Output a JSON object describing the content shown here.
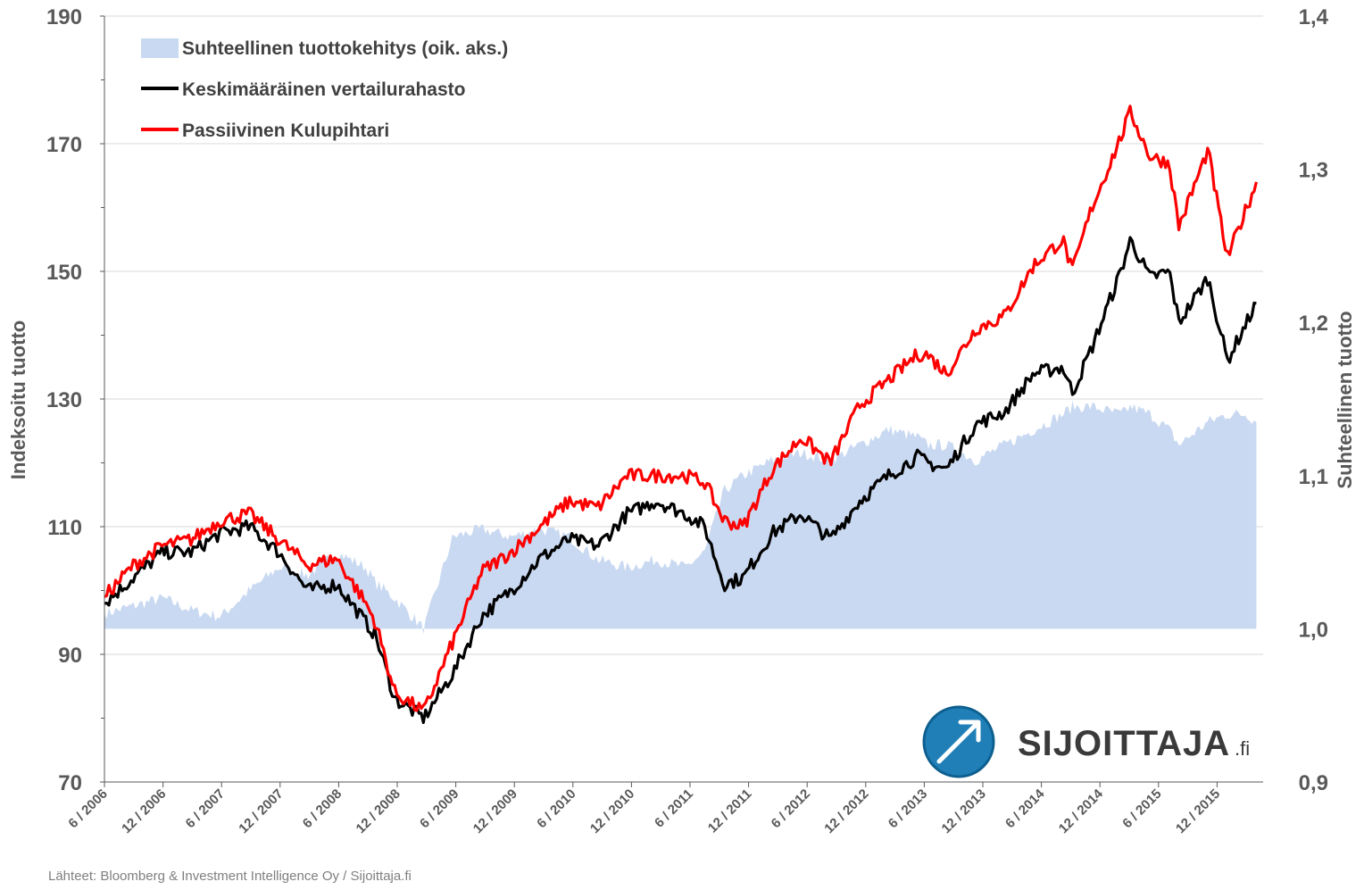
{
  "chart_data": {
    "type": "line",
    "title": "",
    "ylabel": "Indeksoitu tuotto",
    "y2label": "Suhteellinen tuotto",
    "ylim": [
      70,
      190
    ],
    "yticks": [
      "70",
      "90",
      "110",
      "130",
      "150",
      "170",
      "190"
    ],
    "y2lim": [
      0.9,
      1.4
    ],
    "y2ticks": [
      "0,9",
      "1,0",
      "1,1",
      "1,2",
      "1,3",
      "1,4"
    ],
    "x_tick_labels": [
      "6 / 2006",
      "12 / 2006",
      "6 / 2007",
      "12 / 2007",
      "6 / 2008",
      "12 / 2008",
      "6 / 2009",
      "12 / 2009",
      "6 / 2010",
      "12 / 2010",
      "6 / 2011",
      "12 / 2011",
      "6 / 2012",
      "12 / 2012",
      "6 / 2013",
      "12 / 2013",
      "6 / 2014",
      "12 / 2014",
      "6 / 2015",
      "12 / 2015"
    ],
    "x": [
      "2006-06",
      "2006-09",
      "2006-12",
      "2007-03",
      "2007-06",
      "2007-09",
      "2007-12",
      "2008-03",
      "2008-06",
      "2008-09",
      "2008-10",
      "2008-12",
      "2009-03",
      "2009-06",
      "2009-09",
      "2009-12",
      "2010-03",
      "2010-06",
      "2010-09",
      "2010-12",
      "2011-03",
      "2011-06",
      "2011-08",
      "2011-10",
      "2011-12",
      "2012-03",
      "2012-06",
      "2012-09",
      "2012-12",
      "2013-03",
      "2013-06",
      "2013-07",
      "2013-09",
      "2013-12",
      "2014-03",
      "2014-06",
      "2014-09",
      "2014-10",
      "2014-12",
      "2015-03",
      "2015-04",
      "2015-06",
      "2015-08",
      "2015-09",
      "2015-12",
      "2016-02",
      "2016-04",
      "2016-05"
    ],
    "legend_position": "top-left",
    "grid": true,
    "series": [
      {
        "name": "Suhteellinen tuottokehitys (oik. aks.)",
        "type": "area",
        "axis": "right",
        "color": "#c9d9f1",
        "values": [
          1.01,
          1.015,
          1.02,
          1.012,
          1.008,
          1.025,
          1.04,
          1.035,
          1.05,
          1.04,
          1.03,
          1.02,
          1.0,
          1.06,
          1.065,
          1.06,
          1.065,
          1.06,
          1.045,
          1.04,
          1.045,
          1.04,
          1.05,
          1.09,
          1.1,
          1.11,
          1.115,
          1.11,
          1.12,
          1.13,
          1.125,
          1.12,
          1.12,
          1.11,
          1.12,
          1.13,
          1.14,
          1.145,
          1.145,
          1.14,
          1.145,
          1.14,
          1.13,
          1.12,
          1.135,
          1.14,
          1.14,
          1.135
        ]
      },
      {
        "name": "Keskimääräinen vertailurahasto",
        "type": "line",
        "axis": "left",
        "color": "#000000",
        "values": [
          98,
          102,
          106,
          106,
          109,
          110,
          106,
          100,
          101,
          95,
          93,
          83,
          80,
          87,
          96,
          100,
          105,
          108,
          107,
          112,
          114,
          112,
          110,
          101,
          102,
          109,
          112,
          108,
          114,
          118,
          121,
          120,
          119,
          126,
          128,
          134,
          135,
          131,
          138,
          150,
          155,
          149,
          150,
          142,
          149,
          136,
          142,
          145
        ]
      },
      {
        "name": "Passiivinen Kulupihtari",
        "type": "line",
        "axis": "left",
        "color": "#ff0000",
        "values": [
          99,
          104,
          107,
          108,
          111,
          112,
          108,
          104,
          105,
          98,
          95,
          84,
          81,
          92,
          103,
          106,
          110,
          114,
          113,
          118,
          118,
          118,
          117,
          111,
          110,
          119,
          124,
          120,
          129,
          133,
          137,
          137,
          134,
          141,
          143,
          151,
          155,
          150,
          160,
          171,
          175,
          168,
          167,
          157,
          169,
          152,
          160,
          164
        ]
      }
    ]
  },
  "source_text": "Lähteet: Bloomberg & Investment Intelligence Oy / Sijoittaja.fi",
  "logo": {
    "text": "SIJOITTAJA",
    "suffix": ".fi",
    "icon": "arrow-up-right-icon"
  }
}
